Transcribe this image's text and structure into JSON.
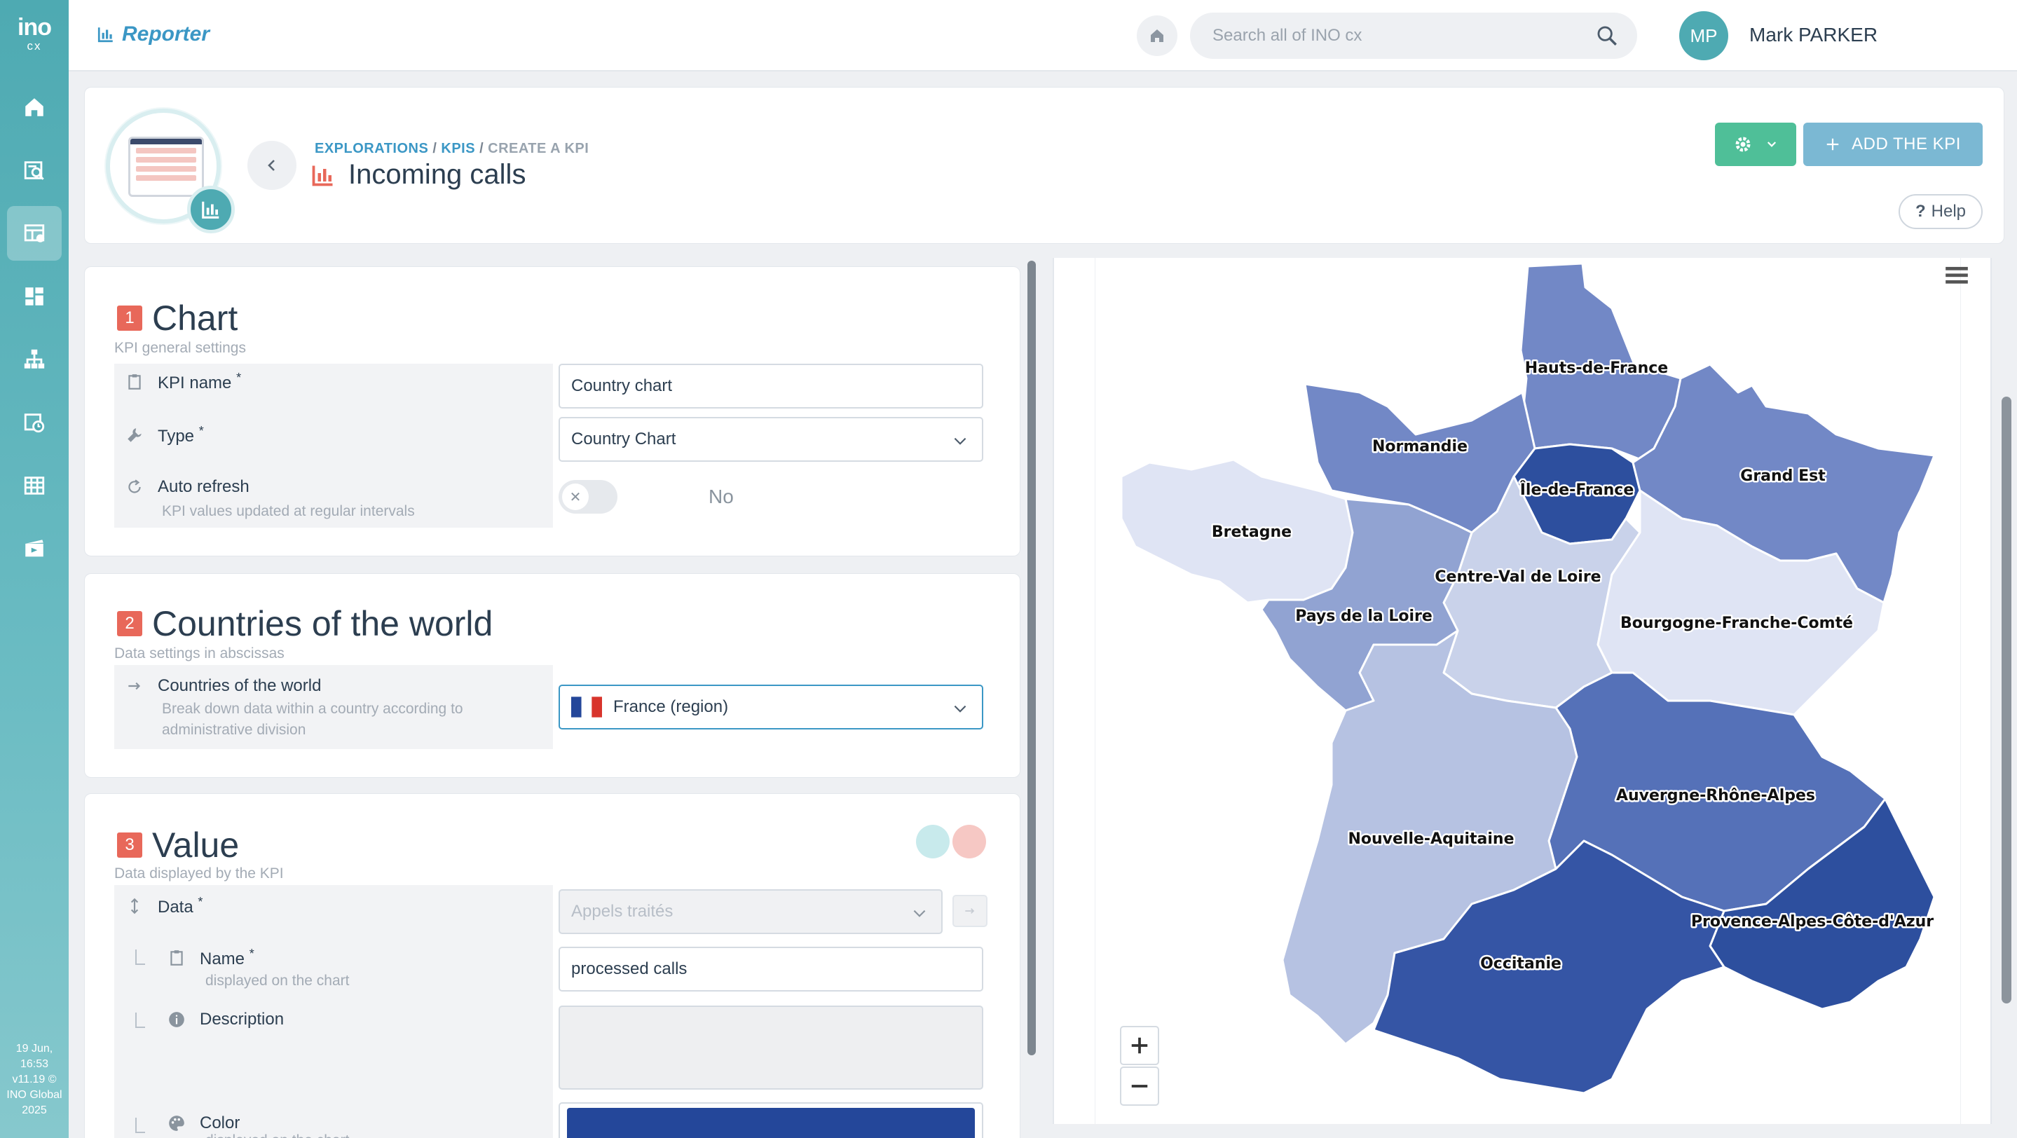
{
  "app": {
    "name": "Reporter",
    "logo_text": "ino",
    "logo_sub": "cx"
  },
  "rail": {
    "items": [
      {
        "name": "home-icon"
      },
      {
        "name": "explorations-icon"
      },
      {
        "name": "kpi-icon"
      },
      {
        "name": "dashboard-icon"
      },
      {
        "name": "hierarchy-icon"
      },
      {
        "name": "schedule-icon"
      },
      {
        "name": "table-icon"
      },
      {
        "name": "media-icon"
      }
    ],
    "footer": [
      "19 Jun,",
      "16:53",
      "v11.19 ©",
      "INO Global",
      "2025"
    ]
  },
  "topbar": {
    "search_placeholder": "Search all of INO cx",
    "user_initials": "MP",
    "user_name": "Mark PARKER"
  },
  "header": {
    "breadcrumbs": [
      "EXPLORATIONS",
      "KPIS",
      "CREATE A KPI"
    ],
    "title": "Incoming calls",
    "add_label": "ADD THE KPI",
    "help_label": "Help"
  },
  "sections": {
    "chart": {
      "num": "1",
      "title": "Chart",
      "subtitle": "KPI general settings",
      "kpi_name_label": "KPI name",
      "kpi_name_value": "Country chart",
      "type_label": "Type",
      "type_value": "Country Chart",
      "auto_refresh_label": "Auto refresh",
      "auto_refresh_sub": "KPI values updated at regular intervals",
      "auto_refresh_value": "No"
    },
    "countries": {
      "num": "2",
      "title": "Countries of the world",
      "subtitle": "Data settings in abscissas",
      "field_label": "Countries of the world",
      "field_sub": "Break down data within a country according to administrative division",
      "value": "France (region)"
    },
    "value": {
      "num": "3",
      "title": "Value",
      "subtitle": "Data displayed by the KPI",
      "data_label": "Data",
      "data_placeholder": "Appels traités",
      "name_label": "Name",
      "name_sub": "displayed on the chart",
      "name_value": "processed calls",
      "description_label": "Description",
      "color_label": "Color",
      "color_sub": "displayed on the chart",
      "color_value": "#24479a"
    }
  },
  "map": {
    "colors": {
      "darkest": "#2d4f9e",
      "dark": "#3555a5",
      "mid_dark": "#5571b8",
      "mid": "#7288c6",
      "mid_light": "#91a3d2",
      "light": "#b6c2e2",
      "lighter": "#c9d2ea",
      "lightest": "#dfe4f4"
    },
    "regions": [
      {
        "label": "Hauts-de-France"
      },
      {
        "label": "Normandie"
      },
      {
        "label": "Île-de-France"
      },
      {
        "label": "Grand Est"
      },
      {
        "label": "Bretagne"
      },
      {
        "label": "Centre-Val de Loire"
      },
      {
        "label": "Pays de la Loire"
      },
      {
        "label": "Bourgogne-Franche-Comté"
      },
      {
        "label": "Auvergne-Rhône-Alpes"
      },
      {
        "label": "Nouvelle-Aquitaine"
      },
      {
        "label": "Provence-Alpes-Côte-d'Azur"
      },
      {
        "label": "Occitanie"
      }
    ]
  }
}
